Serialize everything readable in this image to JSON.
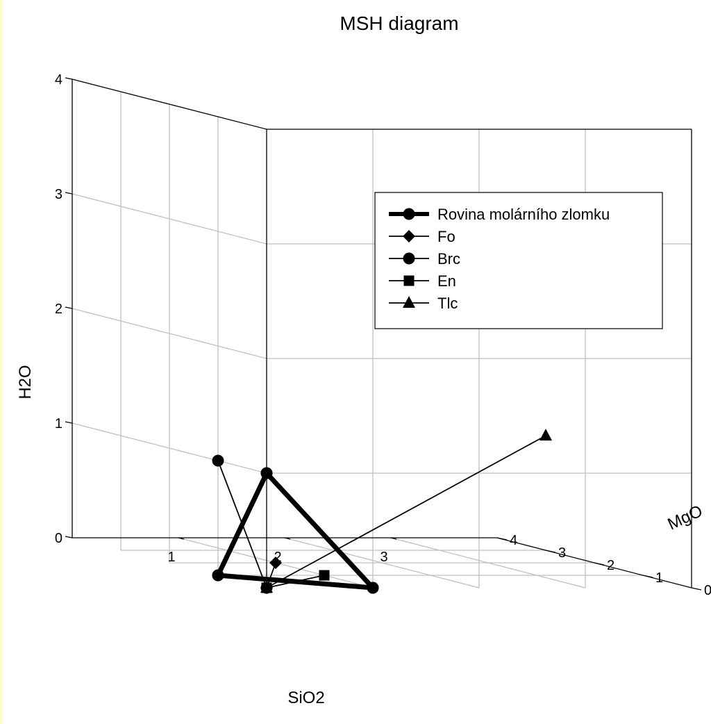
{
  "chart_data": {
    "type": "scatter",
    "projection": "3d",
    "title": "MSH diagram",
    "xlabel": "SiO2",
    "ylabel": "MgO",
    "zlabel": "H2O",
    "xlim": [
      0,
      4
    ],
    "ylim": [
      0,
      4
    ],
    "zlim": [
      0,
      4
    ],
    "x_ticks": [
      "1",
      "2",
      "3"
    ],
    "y_ticks": [
      "0",
      "1",
      "2",
      "3",
      "4"
    ],
    "z_ticks": [
      "0",
      "1",
      "2",
      "3",
      "4"
    ],
    "grid": true,
    "legend_position": "top-right",
    "series": [
      {
        "name": "Rovina molárního zlomku",
        "marker": "circle",
        "style": "thick-line",
        "points": [
          {
            "x": 1,
            "y": 0,
            "z": 0
          },
          {
            "x": 0,
            "y": 1,
            "z": 0
          },
          {
            "x": 0,
            "y": 0,
            "z": 1
          },
          {
            "x": 1,
            "y": 0,
            "z": 0
          },
          {
            "x": 0,
            "y": 0,
            "z": 1
          },
          {
            "x": 0,
            "y": 1,
            "z": 0
          }
        ]
      },
      {
        "name": "Fo",
        "marker": "diamond",
        "style": "line",
        "points": [
          {
            "x": 1,
            "y": 2,
            "z": 0
          },
          {
            "x": 0,
            "y": 0,
            "z": 0
          }
        ]
      },
      {
        "name": "Brc",
        "marker": "circle",
        "style": "line",
        "points": [
          {
            "x": 0,
            "y": 1,
            "z": 1
          },
          {
            "x": 0,
            "y": 0,
            "z": 0
          }
        ]
      },
      {
        "name": "En",
        "marker": "square",
        "style": "line",
        "points": [
          {
            "x": 1,
            "y": 1,
            "z": 0
          },
          {
            "x": 0,
            "y": 0,
            "z": 0
          }
        ]
      },
      {
        "name": "Tlc",
        "marker": "triangle",
        "style": "line",
        "points": [
          {
            "x": 4,
            "y": 3,
            "z": 1
          },
          {
            "x": 0,
            "y": 0,
            "z": 0
          }
        ]
      }
    ]
  }
}
